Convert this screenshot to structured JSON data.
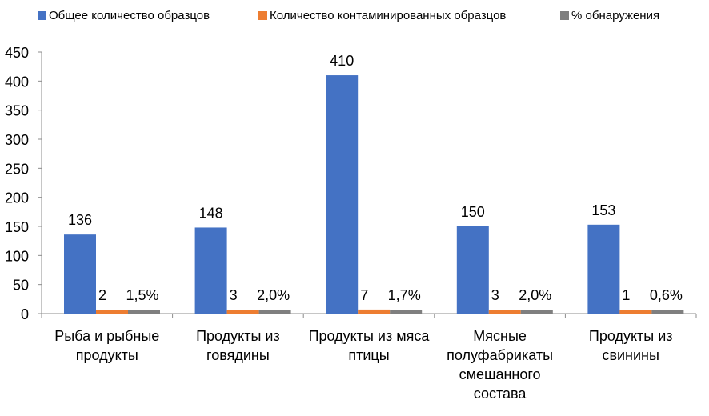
{
  "chart_data": {
    "type": "bar",
    "categories": [
      "Рыба и рыбные продукты",
      "Продукты из говядины",
      "Продукты из мяса птицы",
      "Мясные полуфабрикаты смешанного состава",
      "Продукты из свинины"
    ],
    "category_lines": [
      [
        "Рыба и рыбные",
        "продукты"
      ],
      [
        "Продукты из",
        "говядины"
      ],
      [
        "Продукты из мяса",
        "птицы"
      ],
      [
        "Мясные",
        "полуфабрикаты",
        "смешанного",
        "состава"
      ],
      [
        "Продукты из",
        "свинины"
      ]
    ],
    "series": [
      {
        "name": "Общее количество образцов",
        "values": [
          136,
          148,
          410,
          150,
          153
        ],
        "labels": [
          "136",
          "148",
          "410",
          "150",
          "153"
        ],
        "color": "#4472C4"
      },
      {
        "name": "Количество контаминированных образцов",
        "values": [
          2,
          3,
          7,
          3,
          1
        ],
        "labels": [
          "2",
          "3",
          "7",
          "3",
          "1"
        ],
        "color": "#ED7D31"
      },
      {
        "name": "% обнаружения",
        "values": [
          1.5,
          2.0,
          1.7,
          2.0,
          0.6
        ],
        "labels": [
          "1,5%",
          "2,0%",
          "1,7%",
          "2,0%",
          "0,6%"
        ],
        "color": "#7F7F7F"
      }
    ],
    "yticks": [
      0,
      50,
      100,
      150,
      200,
      250,
      300,
      350,
      400,
      450
    ],
    "ylim": [
      0,
      450
    ],
    "grid": false,
    "legend": "top",
    "title": "",
    "xlabel": "",
    "ylabel": ""
  }
}
